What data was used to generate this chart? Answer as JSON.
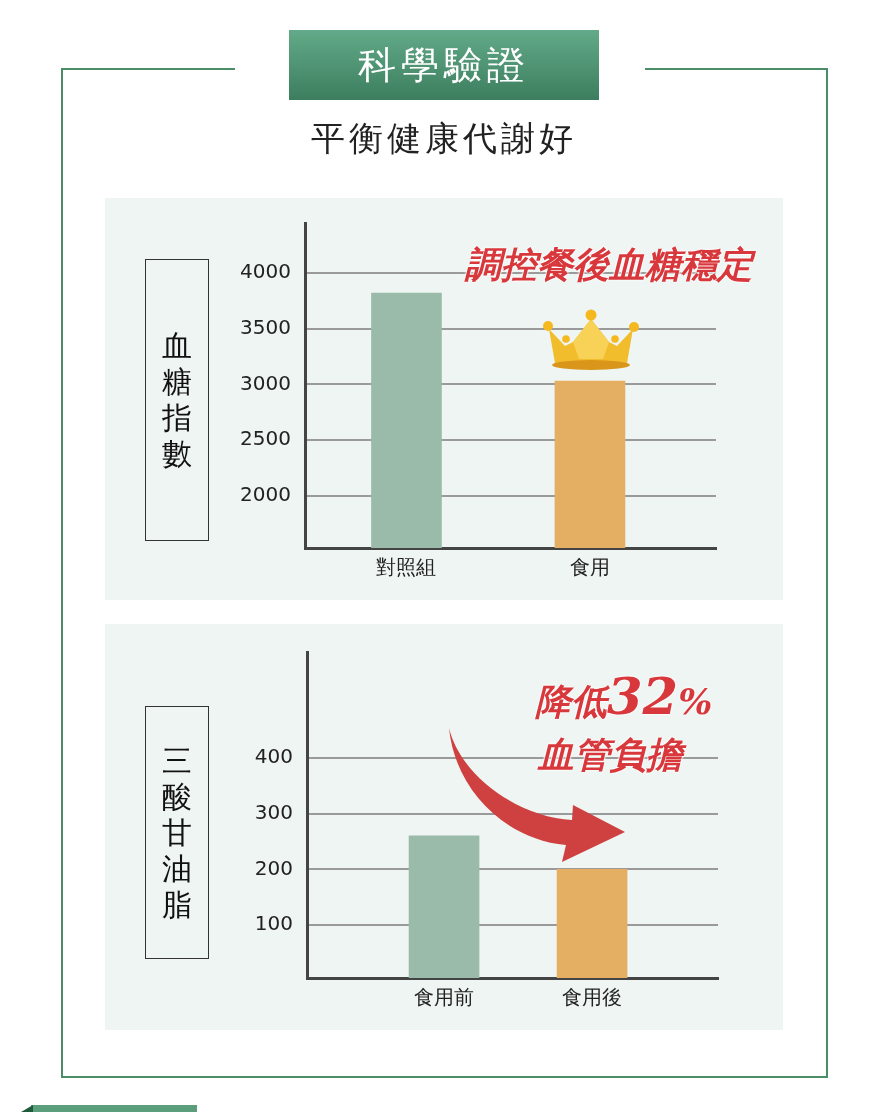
{
  "chart_data": [
    {
      "type": "other",
      "title": "科學驗證",
      "subtitle": "平衡健康代謝好"
    },
    {
      "type": "bar",
      "ylabel": "血糖指數",
      "categories": [
        "對照組",
        "食用"
      ],
      "values": [
        3820,
        3030
      ],
      "colors": [
        "#9bbbaa",
        "#e5af63"
      ],
      "ylim": [
        1530,
        4450
      ],
      "yticks": [
        2000,
        2500,
        3000,
        3500,
        4000
      ],
      "grid": "y",
      "annotations": [
        "調控餐後血糖穩定"
      ]
    },
    {
      "type": "bar",
      "ylabel": "三酸甘油脂",
      "categories": [
        "食用前",
        "食用後"
      ],
      "values": [
        260,
        200
      ],
      "colors": [
        "#9bbbaa",
        "#e5af63"
      ],
      "ylim": [
        5,
        590
      ],
      "yticks": [
        100,
        200,
        300,
        400
      ],
      "grid": "y",
      "annotations": [
        "降低32%",
        "血管負擔"
      ]
    }
  ]
}
